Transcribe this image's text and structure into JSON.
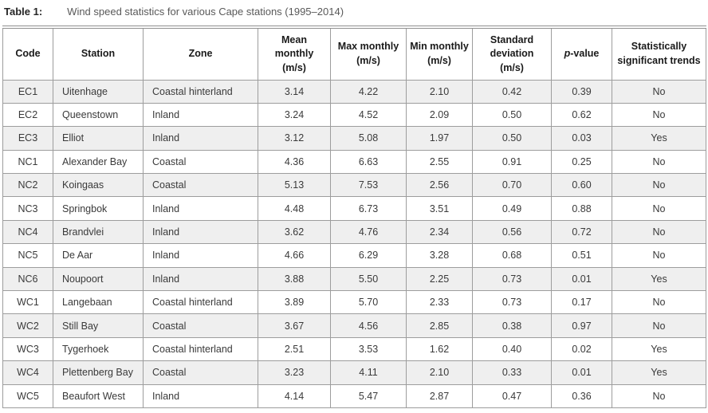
{
  "caption": {
    "label": "Table 1:",
    "text": "Wind speed statistics for various Cape stations (1995–2014)"
  },
  "table": {
    "columns": [
      {
        "key": "code",
        "label": "Code",
        "lines": [
          "Code"
        ]
      },
      {
        "key": "station",
        "label": "Station",
        "lines": [
          "Station"
        ]
      },
      {
        "key": "zone",
        "label": "Zone",
        "lines": [
          "Zone"
        ]
      },
      {
        "key": "mean-monthly",
        "label": "Mean monthly (m/s)",
        "lines": [
          "Mean monthly",
          "(m/s)"
        ]
      },
      {
        "key": "max-monthly",
        "label": "Max monthly (m/s)",
        "lines": [
          "Max monthly",
          "(m/s)"
        ]
      },
      {
        "key": "min-monthly",
        "label": "Min monthly (m/s)",
        "lines": [
          "Min monthly",
          "(m/s)"
        ]
      },
      {
        "key": "standard-deviation",
        "label": "Standard deviation (m/s)",
        "lines": [
          "Standard",
          "deviation",
          "(m/s)"
        ]
      },
      {
        "key": "p-value",
        "label": "p-value",
        "lines": [
          "p-value"
        ]
      },
      {
        "key": "significant-trends",
        "label": "Statistically significant trends",
        "lines": [
          "Statistically",
          "significant trends"
        ]
      }
    ],
    "rows": [
      [
        "EC1",
        "Uitenhage",
        "Coastal hinterland",
        "3.14",
        "4.22",
        "2.10",
        "0.42",
        "0.39",
        "No"
      ],
      [
        "EC2",
        "Queenstown",
        "Inland",
        "3.24",
        "4.52",
        "2.09",
        "0.50",
        "0.62",
        "No"
      ],
      [
        "EC3",
        "Elliot",
        "Inland",
        "3.12",
        "5.08",
        "1.97",
        "0.50",
        "0.03",
        "Yes"
      ],
      [
        "NC1",
        "Alexander Bay",
        "Coastal",
        "4.36",
        "6.63",
        "2.55",
        "0.91",
        "0.25",
        "No"
      ],
      [
        "NC2",
        "Koingaas",
        "Coastal",
        "5.13",
        "7.53",
        "2.56",
        "0.70",
        "0.60",
        "No"
      ],
      [
        "NC3",
        "Springbok",
        "Inland",
        "4.48",
        "6.73",
        "3.51",
        "0.49",
        "0.88",
        "No"
      ],
      [
        "NC4",
        "Brandvlei",
        "Inland",
        "3.62",
        "4.76",
        "2.34",
        "0.56",
        "0.72",
        "No"
      ],
      [
        "NC5",
        "De Aar",
        "Inland",
        "4.66",
        "6.29",
        "3.28",
        "0.68",
        "0.51",
        "No"
      ],
      [
        "NC6",
        "Noupoort",
        "Inland",
        "3.88",
        "5.50",
        "2.25",
        "0.73",
        "0.01",
        "Yes"
      ],
      [
        "WC1",
        "Langebaan",
        "Coastal hinterland",
        "3.89",
        "5.70",
        "2.33",
        "0.73",
        "0.17",
        "No"
      ],
      [
        "WC2",
        "Still Bay",
        "Coastal",
        "3.67",
        "4.56",
        "2.85",
        "0.38",
        "0.97",
        "No"
      ],
      [
        "WC3",
        "Tygerhoek",
        "Coastal hinterland",
        "2.51",
        "3.53",
        "1.62",
        "0.40",
        "0.02",
        "Yes"
      ],
      [
        "WC4",
        "Plettenberg Bay",
        "Coastal",
        "3.23",
        "4.11",
        "2.10",
        "0.33",
        "0.01",
        "Yes"
      ],
      [
        "WC5",
        "Beaufort West",
        "Inland",
        "4.14",
        "5.47",
        "2.87",
        "0.47",
        "0.36",
        "No"
      ]
    ]
  },
  "colors": {
    "row_stripe": "#efefef",
    "grid_border": "#9d9d9d",
    "rule_border": "#8f8f8f",
    "header_text": "#1a1a1a",
    "body_text": "#3a3a3a",
    "caption_label_text": "#262626",
    "caption_text": "#595959"
  }
}
